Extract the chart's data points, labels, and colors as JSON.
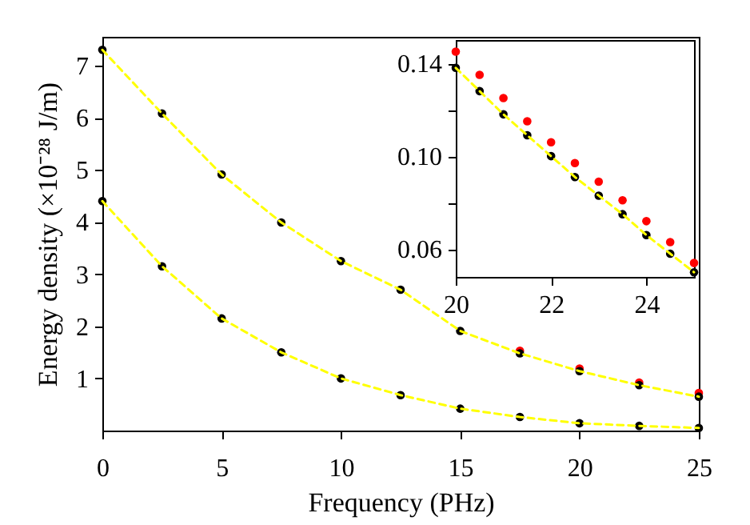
{
  "chart_data": [
    {
      "type": "scatter",
      "xlabel": "Frequency (PHz)",
      "ylabel": "Energy density (×10⁻²⁸ J/m)",
      "x": [
        0,
        2.5,
        5,
        7.5,
        10,
        12.5,
        15,
        17.5,
        20,
        22.5,
        25
      ],
      "xlim": [
        0,
        25
      ],
      "xticks": [
        0,
        5,
        10,
        15,
        20,
        25
      ],
      "ylim": [
        0,
        7.55
      ],
      "yticks": [
        1,
        2,
        3,
        4,
        5,
        6,
        7
      ],
      "grid": false,
      "series": [
        {
          "type": "scatter",
          "marker": "circle",
          "color": "#ff0000",
          "values": [
            null,
            null,
            null,
            null,
            null,
            null,
            null,
            1.53,
            1.19,
            0.92,
            0.72
          ]
        },
        {
          "type": "scatter",
          "marker": "circle",
          "color": "#000000",
          "values": [
            7.3,
            6.08,
            4.91,
            3.99,
            3.25,
            2.7,
            1.91,
            1.48,
            1.14,
            0.87,
            0.65
          ]
        },
        {
          "type": "line",
          "marker": "none",
          "color": "#ffff00",
          "line_style": "dashed",
          "values": [
            7.3,
            6.08,
            4.91,
            3.99,
            3.25,
            2.7,
            1.91,
            1.48,
            1.14,
            0.87,
            0.65
          ]
        },
        {
          "type": "scatter",
          "marker": "circle",
          "color": "#000000",
          "values": [
            4.4,
            3.15,
            2.15,
            1.5,
            1.0,
            0.68,
            0.42,
            0.26,
            0.14,
            0.09,
            0.05
          ]
        },
        {
          "type": "line",
          "marker": "none",
          "color": "#ffff00",
          "line_style": "dashed",
          "values": [
            4.4,
            3.15,
            2.15,
            1.5,
            1.0,
            0.68,
            0.42,
            0.26,
            0.14,
            0.09,
            0.05
          ]
        }
      ]
    },
    {
      "type": "scatter",
      "x": [
        20,
        20.5,
        21,
        21.5,
        22,
        22.5,
        23,
        23.5,
        24,
        24.5,
        25
      ],
      "xlim": [
        20,
        25
      ],
      "xticks": [
        20,
        22,
        24
      ],
      "ylim": [
        0.048,
        0.15
      ],
      "yticks": [
        {
          "value": 0.06,
          "label": "0.06"
        },
        {
          "value": 0.08,
          "label": null
        },
        {
          "value": 0.1,
          "label": "0.10"
        },
        {
          "value": 0.12,
          "label": null
        },
        {
          "value": 0.14,
          "label": "0.14"
        }
      ],
      "grid": false,
      "series": [
        {
          "type": "scatter",
          "marker": "circle",
          "color": "#ff0000",
          "values": [
            0.145,
            0.135,
            0.125,
            0.115,
            0.106,
            0.097,
            0.089,
            0.081,
            0.072,
            0.063,
            0.054
          ]
        },
        {
          "type": "scatter",
          "marker": "circle",
          "color": "#000000",
          "values": [
            0.138,
            0.128,
            0.118,
            0.109,
            0.1,
            0.091,
            0.083,
            0.075,
            0.066,
            0.058,
            0.05
          ]
        },
        {
          "type": "line",
          "marker": "none",
          "color": "#ffff00",
          "line_style": "dashed",
          "values": [
            0.138,
            0.128,
            0.118,
            0.109,
            0.1,
            0.091,
            0.083,
            0.075,
            0.066,
            0.058,
            0.05
          ]
        }
      ]
    }
  ]
}
